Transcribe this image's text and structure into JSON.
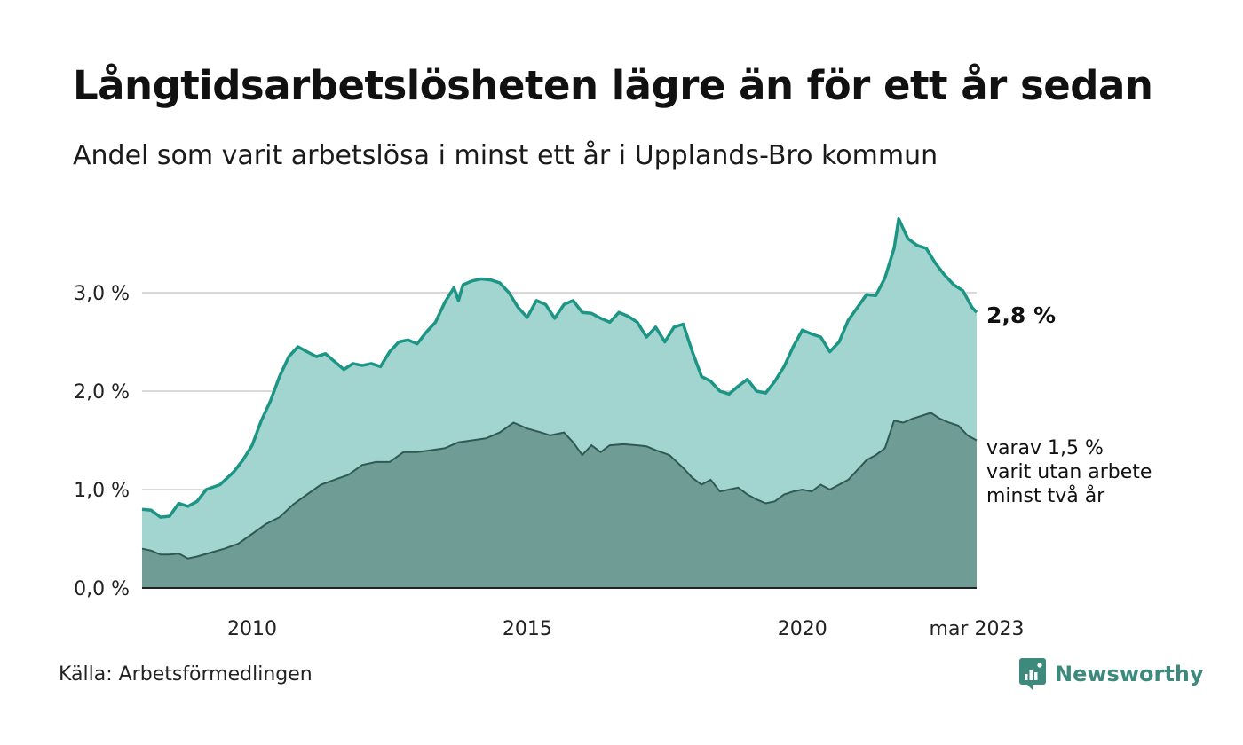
{
  "header": {
    "title": "Långtidsarbetslösheten lägre än för ett år sedan",
    "subtitle": "Andel som varit arbetslösa i minst ett år i Upplands-Bro kommun"
  },
  "footer": {
    "source": "Källa: Arbetsförmedlingen",
    "brand": "Newsworthy"
  },
  "colors": {
    "total_fill": "#a3d5d0",
    "total_line": "#1d9585",
    "twoyear_fill": "#6f9d96",
    "twoyear_line": "#2f5a53",
    "grid": "#d9d9d9",
    "brand": "#3d8a7d"
  },
  "chart_data": {
    "type": "area",
    "x_start": "2008-01",
    "x_end": "2023-03",
    "ylim": [
      0,
      3.8
    ],
    "y_ticks": [
      {
        "value": 0,
        "label": "0,0 %"
      },
      {
        "value": 1,
        "label": "1,0 %"
      },
      {
        "value": 2,
        "label": "2,0 %"
      },
      {
        "value": 3,
        "label": "3,0 %"
      }
    ],
    "x_ticks": [
      {
        "date": "2010-01",
        "label": "2010"
      },
      {
        "date": "2015-01",
        "label": "2015"
      },
      {
        "date": "2020-01",
        "label": "2020"
      },
      {
        "date": "2023-03",
        "label": "mar 2023"
      }
    ],
    "grid": true,
    "series": [
      {
        "key": "total",
        "end_label": "2,8 %",
        "points": [
          [
            "2008-01",
            0.8
          ],
          [
            "2008-03",
            0.79
          ],
          [
            "2008-05",
            0.72
          ],
          [
            "2008-07",
            0.73
          ],
          [
            "2008-09",
            0.86
          ],
          [
            "2008-11",
            0.83
          ],
          [
            "2009-01",
            0.88
          ],
          [
            "2009-03",
            1.0
          ],
          [
            "2009-06",
            1.05
          ],
          [
            "2009-09",
            1.18
          ],
          [
            "2009-11",
            1.3
          ],
          [
            "2010-01",
            1.45
          ],
          [
            "2010-03",
            1.7
          ],
          [
            "2010-05",
            1.9
          ],
          [
            "2010-07",
            2.15
          ],
          [
            "2010-09",
            2.35
          ],
          [
            "2010-11",
            2.45
          ],
          [
            "2011-01",
            2.4
          ],
          [
            "2011-03",
            2.35
          ],
          [
            "2011-05",
            2.38
          ],
          [
            "2011-07",
            2.3
          ],
          [
            "2011-09",
            2.22
          ],
          [
            "2011-11",
            2.28
          ],
          [
            "2012-01",
            2.26
          ],
          [
            "2012-03",
            2.28
          ],
          [
            "2012-05",
            2.25
          ],
          [
            "2012-07",
            2.4
          ],
          [
            "2012-09",
            2.5
          ],
          [
            "2012-11",
            2.52
          ],
          [
            "2013-01",
            2.48
          ],
          [
            "2013-03",
            2.6
          ],
          [
            "2013-05",
            2.7
          ],
          [
            "2013-07",
            2.9
          ],
          [
            "2013-09",
            3.05
          ],
          [
            "2013-10",
            2.92
          ],
          [
            "2013-11",
            3.08
          ],
          [
            "2014-01",
            3.12
          ],
          [
            "2014-03",
            3.14
          ],
          [
            "2014-05",
            3.13
          ],
          [
            "2014-07",
            3.1
          ],
          [
            "2014-09",
            3.0
          ],
          [
            "2014-11",
            2.85
          ],
          [
            "2015-01",
            2.75
          ],
          [
            "2015-03",
            2.92
          ],
          [
            "2015-05",
            2.88
          ],
          [
            "2015-07",
            2.74
          ],
          [
            "2015-09",
            2.88
          ],
          [
            "2015-11",
            2.92
          ],
          [
            "2016-01",
            2.8
          ],
          [
            "2016-03",
            2.79
          ],
          [
            "2016-05",
            2.74
          ],
          [
            "2016-07",
            2.7
          ],
          [
            "2016-09",
            2.8
          ],
          [
            "2016-11",
            2.76
          ],
          [
            "2017-01",
            2.7
          ],
          [
            "2017-03",
            2.55
          ],
          [
            "2017-05",
            2.65
          ],
          [
            "2017-07",
            2.5
          ],
          [
            "2017-09",
            2.65
          ],
          [
            "2017-11",
            2.68
          ],
          [
            "2018-01",
            2.4
          ],
          [
            "2018-03",
            2.15
          ],
          [
            "2018-05",
            2.1
          ],
          [
            "2018-07",
            2.0
          ],
          [
            "2018-09",
            1.97
          ],
          [
            "2018-11",
            2.05
          ],
          [
            "2019-01",
            2.12
          ],
          [
            "2019-03",
            2.0
          ],
          [
            "2019-05",
            1.98
          ],
          [
            "2019-07",
            2.1
          ],
          [
            "2019-09",
            2.25
          ],
          [
            "2019-11",
            2.45
          ],
          [
            "2020-01",
            2.62
          ],
          [
            "2020-03",
            2.58
          ],
          [
            "2020-05",
            2.55
          ],
          [
            "2020-07",
            2.4
          ],
          [
            "2020-09",
            2.5
          ],
          [
            "2020-11",
            2.72
          ],
          [
            "2021-01",
            2.85
          ],
          [
            "2021-03",
            2.98
          ],
          [
            "2021-05",
            2.97
          ],
          [
            "2021-07",
            3.15
          ],
          [
            "2021-09",
            3.45
          ],
          [
            "2021-10",
            3.75
          ],
          [
            "2021-12",
            3.55
          ],
          [
            "2022-02",
            3.48
          ],
          [
            "2022-04",
            3.45
          ],
          [
            "2022-06",
            3.3
          ],
          [
            "2022-08",
            3.18
          ],
          [
            "2022-10",
            3.08
          ],
          [
            "2022-12",
            3.02
          ],
          [
            "2023-02",
            2.85
          ],
          [
            "2023-03",
            2.8
          ]
        ]
      },
      {
        "key": "two_year",
        "end_label": [
          "varav 1,5 %",
          "varit utan arbete",
          "minst två år"
        ],
        "points": [
          [
            "2008-01",
            0.4
          ],
          [
            "2008-03",
            0.38
          ],
          [
            "2008-05",
            0.34
          ],
          [
            "2008-07",
            0.34
          ],
          [
            "2008-09",
            0.35
          ],
          [
            "2008-11",
            0.3
          ],
          [
            "2009-01",
            0.32
          ],
          [
            "2009-04",
            0.36
          ],
          [
            "2009-07",
            0.4
          ],
          [
            "2009-10",
            0.45
          ],
          [
            "2010-01",
            0.55
          ],
          [
            "2010-04",
            0.65
          ],
          [
            "2010-07",
            0.72
          ],
          [
            "2010-10",
            0.85
          ],
          [
            "2011-01",
            0.95
          ],
          [
            "2011-04",
            1.05
          ],
          [
            "2011-07",
            1.1
          ],
          [
            "2011-10",
            1.15
          ],
          [
            "2012-01",
            1.25
          ],
          [
            "2012-04",
            1.28
          ],
          [
            "2012-07",
            1.28
          ],
          [
            "2012-10",
            1.38
          ],
          [
            "2013-01",
            1.38
          ],
          [
            "2013-04",
            1.4
          ],
          [
            "2013-07",
            1.42
          ],
          [
            "2013-10",
            1.48
          ],
          [
            "2014-01",
            1.5
          ],
          [
            "2014-04",
            1.52
          ],
          [
            "2014-07",
            1.58
          ],
          [
            "2014-10",
            1.68
          ],
          [
            "2015-01",
            1.62
          ],
          [
            "2015-04",
            1.58
          ],
          [
            "2015-06",
            1.55
          ],
          [
            "2015-09",
            1.58
          ],
          [
            "2015-11",
            1.48
          ],
          [
            "2016-01",
            1.35
          ],
          [
            "2016-03",
            1.45
          ],
          [
            "2016-05",
            1.38
          ],
          [
            "2016-07",
            1.45
          ],
          [
            "2016-10",
            1.46
          ],
          [
            "2017-01",
            1.45
          ],
          [
            "2017-03",
            1.44
          ],
          [
            "2017-05",
            1.4
          ],
          [
            "2017-08",
            1.35
          ],
          [
            "2017-11",
            1.22
          ],
          [
            "2018-01",
            1.12
          ],
          [
            "2018-03",
            1.05
          ],
          [
            "2018-05",
            1.1
          ],
          [
            "2018-07",
            0.98
          ],
          [
            "2018-09",
            1.0
          ],
          [
            "2018-11",
            1.02
          ],
          [
            "2019-01",
            0.95
          ],
          [
            "2019-03",
            0.9
          ],
          [
            "2019-05",
            0.86
          ],
          [
            "2019-07",
            0.88
          ],
          [
            "2019-09",
            0.95
          ],
          [
            "2019-11",
            0.98
          ],
          [
            "2020-01",
            1.0
          ],
          [
            "2020-03",
            0.98
          ],
          [
            "2020-05",
            1.05
          ],
          [
            "2020-07",
            1.0
          ],
          [
            "2020-09",
            1.05
          ],
          [
            "2020-11",
            1.1
          ],
          [
            "2021-01",
            1.2
          ],
          [
            "2021-03",
            1.3
          ],
          [
            "2021-05",
            1.35
          ],
          [
            "2021-07",
            1.42
          ],
          [
            "2021-09",
            1.7
          ],
          [
            "2021-11",
            1.68
          ],
          [
            "2022-01",
            1.72
          ],
          [
            "2022-03",
            1.75
          ],
          [
            "2022-05",
            1.78
          ],
          [
            "2022-07",
            1.72
          ],
          [
            "2022-09",
            1.68
          ],
          [
            "2022-11",
            1.65
          ],
          [
            "2023-01",
            1.55
          ],
          [
            "2023-03",
            1.5
          ]
        ]
      }
    ]
  }
}
